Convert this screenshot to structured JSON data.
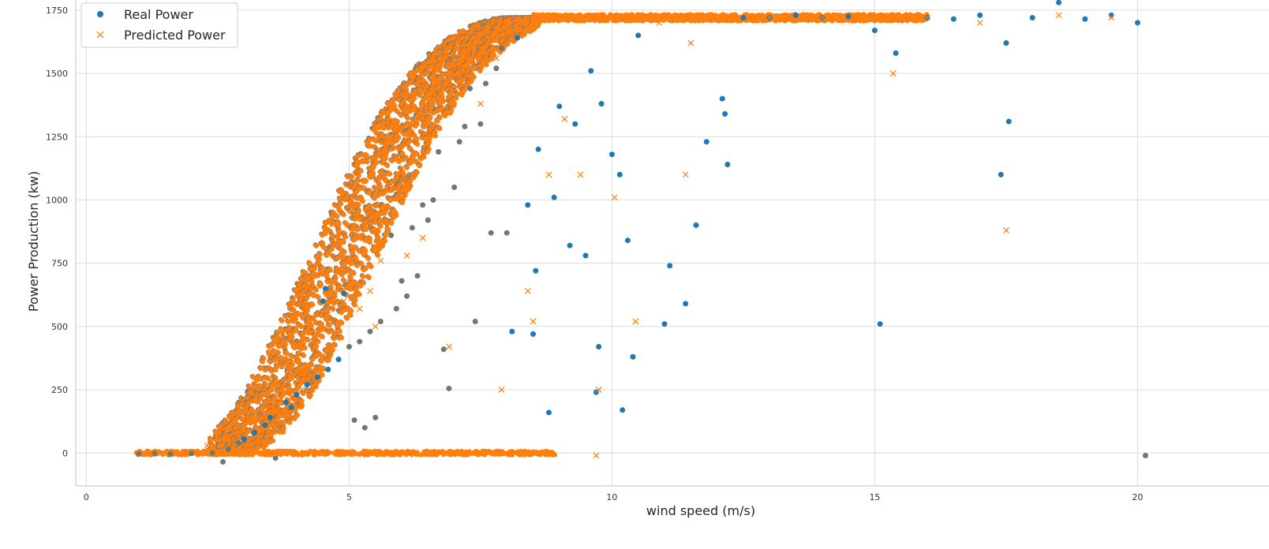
{
  "chart_data": {
    "type": "scatter",
    "title": "",
    "xlabel": "wind speed (m/s)",
    "ylabel": "Power Production (kw)",
    "xlim": [
      -0.2,
      22.5
    ],
    "ylim": [
      -130,
      1790
    ],
    "x_ticks": [
      0,
      5,
      10,
      15,
      20
    ],
    "y_ticks": [
      0,
      250,
      500,
      750,
      1000,
      1250,
      1500,
      1750
    ],
    "x_tick_labels": [
      "0",
      "5",
      "10",
      "15",
      "20"
    ],
    "y_tick_labels": [
      "0",
      "250",
      "500",
      "750",
      "1000",
      "1250",
      "1500",
      "1750"
    ],
    "grid": true,
    "legend_position": "top-left",
    "series": [
      {
        "name": "Real Power",
        "marker": "circle",
        "color": "#1f77b4",
        "points": [
          [
            1.0,
            -3
          ],
          [
            1.3,
            -2
          ],
          [
            1.6,
            -4
          ],
          [
            2.0,
            -2
          ],
          [
            2.4,
            0
          ],
          [
            2.6,
            -35
          ],
          [
            2.7,
            15
          ],
          [
            2.9,
            40
          ],
          [
            3.0,
            55
          ],
          [
            3.2,
            80
          ],
          [
            3.4,
            110
          ],
          [
            3.5,
            140
          ],
          [
            3.6,
            -20
          ],
          [
            3.8,
            200
          ],
          [
            3.9,
            180
          ],
          [
            4.0,
            230
          ],
          [
            4.2,
            270
          ],
          [
            4.4,
            300
          ],
          [
            4.5,
            600
          ],
          [
            4.55,
            650
          ],
          [
            4.6,
            330
          ],
          [
            4.8,
            370
          ],
          [
            4.9,
            630
          ],
          [
            5.0,
            420
          ],
          [
            5.1,
            130
          ],
          [
            5.2,
            440
          ],
          [
            5.3,
            100
          ],
          [
            5.4,
            480
          ],
          [
            5.5,
            140
          ],
          [
            5.6,
            520
          ],
          [
            5.8,
            860
          ],
          [
            5.9,
            570
          ],
          [
            6.0,
            680
          ],
          [
            6.1,
            620
          ],
          [
            6.2,
            890
          ],
          [
            6.3,
            700
          ],
          [
            6.4,
            980
          ],
          [
            6.5,
            920
          ],
          [
            6.6,
            1000
          ],
          [
            6.7,
            1190
          ],
          [
            6.8,
            410
          ],
          [
            6.9,
            255
          ],
          [
            7.0,
            1050
          ],
          [
            7.1,
            1230
          ],
          [
            7.2,
            1290
          ],
          [
            7.3,
            1440
          ],
          [
            7.4,
            520
          ],
          [
            7.5,
            1300
          ],
          [
            7.6,
            1460
          ],
          [
            7.7,
            870
          ],
          [
            7.8,
            1520
          ],
          [
            7.9,
            1600
          ],
          [
            8.0,
            870
          ],
          [
            8.1,
            480
          ],
          [
            8.2,
            1640
          ],
          [
            8.4,
            980
          ],
          [
            8.5,
            470
          ],
          [
            8.55,
            720
          ],
          [
            8.6,
            1200
          ],
          [
            8.8,
            160
          ],
          [
            8.9,
            1010
          ],
          [
            9.0,
            1370
          ],
          [
            9.2,
            820
          ],
          [
            9.3,
            1300
          ],
          [
            9.5,
            780
          ],
          [
            9.6,
            1510
          ],
          [
            9.7,
            240
          ],
          [
            9.75,
            420
          ],
          [
            9.8,
            1380
          ],
          [
            10.0,
            1180
          ],
          [
            10.15,
            1100
          ],
          [
            10.2,
            170
          ],
          [
            10.3,
            840
          ],
          [
            10.4,
            380
          ],
          [
            10.5,
            1650
          ],
          [
            11.0,
            510
          ],
          [
            11.1,
            740
          ],
          [
            11.4,
            590
          ],
          [
            11.6,
            900
          ],
          [
            11.8,
            1230
          ],
          [
            12.1,
            1400
          ],
          [
            12.15,
            1340
          ],
          [
            12.2,
            1140
          ],
          [
            12.5,
            1720
          ],
          [
            13.0,
            1720
          ],
          [
            13.5,
            1730
          ],
          [
            14.0,
            1720
          ],
          [
            14.5,
            1725
          ],
          [
            15.0,
            1670
          ],
          [
            15.1,
            510
          ],
          [
            15.4,
            1580
          ],
          [
            16.0,
            1720
          ],
          [
            16.5,
            1715
          ],
          [
            17.0,
            1730
          ],
          [
            17.4,
            1100
          ],
          [
            17.5,
            1620
          ],
          [
            17.55,
            1310
          ],
          [
            18.0,
            1720
          ],
          [
            18.5,
            1780
          ],
          [
            19.0,
            1715
          ],
          [
            19.5,
            1730
          ],
          [
            20.0,
            1700
          ],
          [
            20.15,
            -10
          ]
        ]
      },
      {
        "name": "Predicted Power",
        "marker": "x",
        "color": "#ff7f0e",
        "points": [
          [
            2.3,
            30
          ],
          [
            3.5,
            280
          ],
          [
            3.6,
            160
          ],
          [
            3.9,
            220
          ],
          [
            4.1,
            250
          ],
          [
            4.3,
            300
          ],
          [
            4.5,
            380
          ],
          [
            4.6,
            420
          ],
          [
            4.9,
            600
          ],
          [
            5.2,
            570
          ],
          [
            5.4,
            640
          ],
          [
            5.5,
            500
          ],
          [
            5.6,
            760
          ],
          [
            6.1,
            780
          ],
          [
            6.4,
            850
          ],
          [
            6.9,
            420
          ],
          [
            7.3,
            1520
          ],
          [
            7.5,
            1380
          ],
          [
            7.8,
            1560
          ],
          [
            7.9,
            250
          ],
          [
            8.4,
            640
          ],
          [
            8.5,
            520
          ],
          [
            8.8,
            1100
          ],
          [
            9.1,
            1320
          ],
          [
            9.4,
            1100
          ],
          [
            9.7,
            -10
          ],
          [
            9.75,
            250
          ],
          [
            10.05,
            1010
          ],
          [
            10.45,
            520
          ],
          [
            10.9,
            1700
          ],
          [
            11.4,
            1100
          ],
          [
            11.5,
            1620
          ],
          [
            12.0,
            1720
          ],
          [
            13.0,
            1720
          ],
          [
            14.0,
            1720
          ],
          [
            15.0,
            1720
          ],
          [
            15.35,
            1500
          ],
          [
            16.0,
            1720
          ],
          [
            17.0,
            1700
          ],
          [
            17.5,
            880
          ],
          [
            18.5,
            1730
          ],
          [
            19.5,
            1720
          ]
        ]
      }
    ]
  }
}
